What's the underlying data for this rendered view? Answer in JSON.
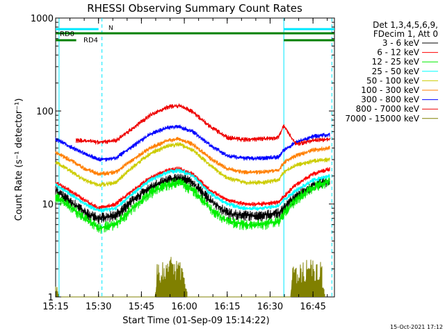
{
  "chart_data": {
    "type": "line",
    "title": "RHESSI Observing Summary Count Rates",
    "xlabel": "Start Time (01-Sep-09 15:14:22)",
    "ylabel": "Count Rate (s⁻¹ detector⁻¹)",
    "y_scale": "log",
    "ylim": [
      1,
      1000
    ],
    "xlim_minutes": [
      15.25,
      16.875
    ],
    "x_ticks": [
      "15:15",
      "15:30",
      "15:45",
      "16:00",
      "16:15",
      "16:30",
      "16:45"
    ],
    "y_ticks": [
      "1",
      "10",
      "100",
      "1000"
    ],
    "timestamp": "15-Oct-2021 17:12",
    "legend_header": [
      "Det 1,3,4,5,6,9,",
      "FDecim 1, Att 0"
    ],
    "legend_position": "right",
    "series": [
      {
        "name": "3 - 6 keV",
        "color": "#000000",
        "points": [
          [
            15.25,
            14
          ],
          [
            15.33,
            11
          ],
          [
            15.42,
            8
          ],
          [
            15.5,
            7
          ],
          [
            15.6,
            7.5
          ],
          [
            15.7,
            11
          ],
          [
            15.8,
            15
          ],
          [
            15.9,
            18
          ],
          [
            15.97,
            19
          ],
          [
            16.05,
            17
          ],
          [
            16.15,
            11
          ],
          [
            16.25,
            8
          ],
          [
            16.35,
            7.5
          ],
          [
            16.45,
            7.5
          ],
          [
            16.55,
            8
          ],
          [
            16.58,
            9
          ],
          [
            16.65,
            12
          ],
          [
            16.75,
            16
          ],
          [
            16.85,
            18
          ]
        ]
      },
      {
        "name": "6 - 12 keV",
        "color": "#ff0000",
        "points": [
          [
            15.25,
            17
          ],
          [
            15.33,
            14
          ],
          [
            15.42,
            11
          ],
          [
            15.5,
            9
          ],
          [
            15.6,
            10
          ],
          [
            15.7,
            14
          ],
          [
            15.8,
            19
          ],
          [
            15.9,
            23
          ],
          [
            15.97,
            24
          ],
          [
            16.05,
            21
          ],
          [
            16.15,
            14
          ],
          [
            16.25,
            11
          ],
          [
            16.35,
            10
          ],
          [
            16.45,
            10
          ],
          [
            16.55,
            10.5
          ],
          [
            16.58,
            12
          ],
          [
            16.65,
            16
          ],
          [
            16.75,
            21
          ],
          [
            16.85,
            24
          ]
        ]
      },
      {
        "name": "12 - 25 keV",
        "color": "#00ee00",
        "points": [
          [
            15.25,
            12
          ],
          [
            15.33,
            9.5
          ],
          [
            15.42,
            7
          ],
          [
            15.5,
            5.5
          ],
          [
            15.6,
            6
          ],
          [
            15.7,
            9
          ],
          [
            15.8,
            13
          ],
          [
            15.9,
            16
          ],
          [
            15.97,
            17
          ],
          [
            16.05,
            14
          ],
          [
            16.15,
            9
          ],
          [
            16.25,
            6.5
          ],
          [
            16.35,
            6
          ],
          [
            16.45,
            6
          ],
          [
            16.55,
            6.5
          ],
          [
            16.58,
            8
          ],
          [
            16.65,
            11
          ],
          [
            16.75,
            15
          ],
          [
            16.85,
            18
          ]
        ]
      },
      {
        "name": "25 - 50 keV",
        "color": "#00ffff",
        "points": [
          [
            15.25,
            16
          ],
          [
            15.33,
            13
          ],
          [
            15.42,
            10
          ],
          [
            15.5,
            8.5
          ],
          [
            15.6,
            9
          ],
          [
            15.7,
            13
          ],
          [
            15.8,
            18
          ],
          [
            15.9,
            22
          ],
          [
            15.97,
            23
          ],
          [
            16.05,
            20
          ],
          [
            16.15,
            13
          ],
          [
            16.25,
            10
          ],
          [
            16.35,
            9
          ],
          [
            16.45,
            9
          ],
          [
            16.55,
            9.5
          ],
          [
            16.58,
            11
          ],
          [
            16.65,
            14
          ],
          [
            16.75,
            18
          ],
          [
            16.85,
            20
          ]
        ]
      },
      {
        "name": "50 - 100 keV",
        "color": "#cccc00",
        "points": [
          [
            15.25,
            28
          ],
          [
            15.33,
            23
          ],
          [
            15.42,
            18
          ],
          [
            15.5,
            16
          ],
          [
            15.6,
            17
          ],
          [
            15.7,
            25
          ],
          [
            15.8,
            35
          ],
          [
            15.9,
            42
          ],
          [
            15.97,
            44
          ],
          [
            16.05,
            38
          ],
          [
            16.15,
            26
          ],
          [
            16.25,
            19
          ],
          [
            16.35,
            17
          ],
          [
            16.45,
            17
          ],
          [
            16.55,
            18
          ],
          [
            16.58,
            22
          ],
          [
            16.65,
            26
          ],
          [
            16.75,
            29
          ],
          [
            16.85,
            30
          ]
        ]
      },
      {
        "name": "100 - 300 keV",
        "color": "#ff7f00",
        "points": [
          [
            15.25,
            36
          ],
          [
            15.33,
            30
          ],
          [
            15.42,
            24
          ],
          [
            15.5,
            21
          ],
          [
            15.6,
            22
          ],
          [
            15.7,
            30
          ],
          [
            15.8,
            40
          ],
          [
            15.9,
            48
          ],
          [
            15.97,
            50
          ],
          [
            16.05,
            44
          ],
          [
            16.15,
            31
          ],
          [
            16.25,
            24
          ],
          [
            16.35,
            22
          ],
          [
            16.45,
            22
          ],
          [
            16.55,
            23
          ],
          [
            16.58,
            28
          ],
          [
            16.65,
            33
          ],
          [
            16.75,
            38
          ],
          [
            16.85,
            40
          ]
        ]
      },
      {
        "name": "300 - 800 keV",
        "color": "#0000ff",
        "points": [
          [
            15.25,
            50
          ],
          [
            15.33,
            42
          ],
          [
            15.42,
            35
          ],
          [
            15.5,
            30
          ],
          [
            15.6,
            31
          ],
          [
            15.7,
            42
          ],
          [
            15.8,
            56
          ],
          [
            15.9,
            66
          ],
          [
            15.97,
            68
          ],
          [
            16.05,
            60
          ],
          [
            16.15,
            43
          ],
          [
            16.25,
            33
          ],
          [
            16.35,
            31
          ],
          [
            16.45,
            31
          ],
          [
            16.55,
            32
          ],
          [
            16.58,
            38
          ],
          [
            16.65,
            46
          ],
          [
            16.75,
            53
          ],
          [
            16.85,
            56
          ]
        ]
      },
      {
        "name": "800 - 7000 keV",
        "color": "#ee0000",
        "points": [
          [
            15.37,
            48
          ],
          [
            15.42,
            48
          ],
          [
            15.5,
            46
          ],
          [
            15.6,
            48
          ],
          [
            15.7,
            65
          ],
          [
            15.8,
            90
          ],
          [
            15.9,
            110
          ],
          [
            15.97,
            115
          ],
          [
            16.05,
            98
          ],
          [
            16.15,
            68
          ],
          [
            16.25,
            52
          ],
          [
            16.35,
            49
          ],
          [
            16.45,
            50
          ],
          [
            16.55,
            52
          ],
          [
            16.58,
            70
          ],
          [
            16.65,
            44
          ],
          [
            16.75,
            48
          ],
          [
            16.85,
            50
          ]
        ]
      },
      {
        "name": "7000 - 15000 keV",
        "color": "#808000",
        "points": [
          [
            15.25,
            1.6
          ],
          [
            15.27,
            1
          ],
          [
            15.83,
            1
          ],
          [
            15.84,
            2.3
          ],
          [
            15.9,
            2.5
          ],
          [
            15.93,
            2.9
          ],
          [
            15.97,
            2.4
          ],
          [
            16.0,
            2.2
          ],
          [
            16.02,
            1
          ],
          [
            16.62,
            1
          ],
          [
            16.63,
            2.2
          ],
          [
            16.7,
            2.5
          ],
          [
            16.75,
            2.6
          ],
          [
            16.8,
            2.4
          ],
          [
            16.82,
            1
          ]
        ]
      }
    ],
    "state_bars": [
      {
        "label": "N",
        "color": "#00e8ff",
        "segments": [
          [
            15.25,
            15.5
          ],
          [
            16.58,
            16.875
          ]
        ],
        "level": "top"
      },
      {
        "label": "RD0",
        "color": "#008000",
        "segments": [
          [
            15.25,
            16.58
          ],
          [
            16.58,
            16.875
          ]
        ],
        "level": "middle"
      },
      {
        "label": "RD4",
        "color": "#008000",
        "segments": [
          [
            15.25,
            15.37
          ],
          [
            16.58,
            16.875
          ]
        ],
        "level": "bottom"
      }
    ],
    "vertical_markers": [
      {
        "x": 15.27,
        "color": "#00e8ff",
        "style": "solid"
      },
      {
        "x": 15.52,
        "color": "#00e8ff",
        "style": "dashed"
      },
      {
        "x": 16.58,
        "color": "#00e8ff",
        "style": "solid"
      },
      {
        "x": 16.86,
        "color": "#00e8ff",
        "style": "dashed"
      }
    ]
  }
}
